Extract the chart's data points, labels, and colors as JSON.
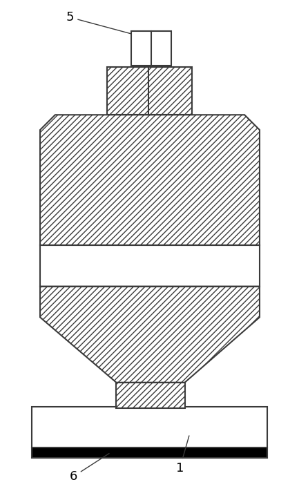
{
  "fig_width": 4.33,
  "fig_height": 7.24,
  "dpi": 100,
  "bg_color": "#ffffff",
  "line_color": "#3a3a3a",
  "lw": 1.5,
  "hatch_pattern": "////",
  "label_fontsize": 13
}
